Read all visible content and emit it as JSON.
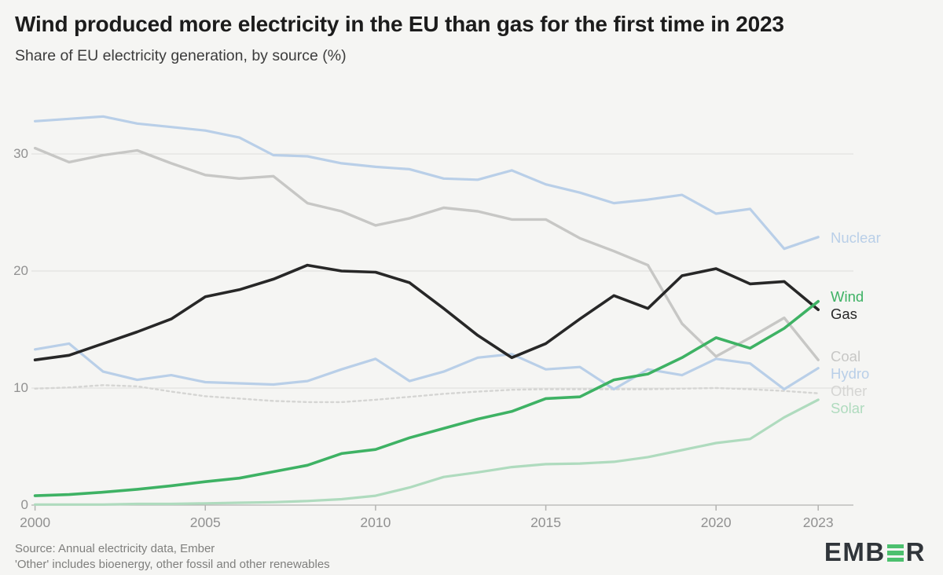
{
  "header": {
    "title": "Wind produced more electricity in the EU than gas for the first time in 2023",
    "subtitle": "Share of EU electricity generation, by source (%)"
  },
  "footer": {
    "source_line1": "Source: Annual electricity data, Ember",
    "source_line2": "'Other' includes bioenergy, other fossil and other renewables",
    "logo_before": "EMB",
    "logo_after": "R",
    "logo_bar_color": "#4cc06e",
    "logo_text_color": "#30353a"
  },
  "colors": {
    "background": "#f5f5f3",
    "gridline": "#dddddb",
    "axis": "#b3b3b1",
    "tick_label": "#919191"
  },
  "chart_data": {
    "type": "line",
    "title": "Wind produced more electricity in the EU than gas for the first time in 2023",
    "subtitle_as_ylabel": "Share of EU electricity generation, by source (%)",
    "xlabel": "",
    "ylabel": "%",
    "grid": "horizontal",
    "legend_position": "right-of-lines",
    "x": [
      2000,
      2001,
      2002,
      2003,
      2004,
      2005,
      2006,
      2007,
      2008,
      2009,
      2010,
      2011,
      2012,
      2013,
      2014,
      2015,
      2016,
      2017,
      2018,
      2019,
      2020,
      2021,
      2022,
      2023
    ],
    "xticks": [
      2000,
      2005,
      2010,
      2015,
      2020,
      2023
    ],
    "yticks": [
      0,
      10,
      20,
      30
    ],
    "ylim": [
      0,
      35
    ],
    "series": [
      {
        "id": "other",
        "label": "Other",
        "color": "#d5d5d3",
        "dashed": true,
        "values": [
          9.95,
          10.05,
          10.25,
          10.15,
          9.7,
          9.3,
          9.1,
          8.9,
          8.8,
          8.8,
          9.0,
          9.25,
          9.5,
          9.7,
          9.85,
          9.9,
          9.9,
          9.9,
          9.9,
          9.95,
          10.0,
          9.9,
          9.75,
          9.55
        ]
      },
      {
        "id": "solar",
        "label": "Solar",
        "color": "#afdbbe",
        "dashed": false,
        "values": [
          0.05,
          0.05,
          0.05,
          0.1,
          0.1,
          0.15,
          0.2,
          0.25,
          0.35,
          0.5,
          0.8,
          1.5,
          2.4,
          2.8,
          3.25,
          3.5,
          3.55,
          3.7,
          4.1,
          4.7,
          5.3,
          5.65,
          7.5,
          9.0
        ]
      },
      {
        "id": "hydro",
        "label": "Hydro",
        "color": "#b9cfe8",
        "dashed": false,
        "values": [
          13.3,
          13.8,
          11.4,
          10.7,
          11.1,
          10.5,
          10.4,
          10.3,
          10.6,
          11.6,
          12.5,
          10.6,
          11.4,
          12.6,
          12.9,
          11.6,
          11.8,
          9.9,
          11.6,
          11.1,
          12.5,
          12.1,
          9.9,
          11.7
        ]
      },
      {
        "id": "nuclear",
        "label": "Nuclear",
        "color": "#b9cfe8",
        "dashed": false,
        "values": [
          32.8,
          33.0,
          33.2,
          32.6,
          32.3,
          32.0,
          31.4,
          29.9,
          29.8,
          29.2,
          28.9,
          28.7,
          27.9,
          27.8,
          28.6,
          27.4,
          26.7,
          25.8,
          26.1,
          26.5,
          24.9,
          25.3,
          21.9,
          22.9
        ]
      },
      {
        "id": "coal",
        "label": "Coal",
        "color": "#c7c7c5",
        "dashed": false,
        "values": [
          30.5,
          29.3,
          29.9,
          30.3,
          29.2,
          28.2,
          27.9,
          28.1,
          25.8,
          25.1,
          23.9,
          24.5,
          25.4,
          25.1,
          24.4,
          24.4,
          22.8,
          21.7,
          20.5,
          15.5,
          12.7,
          14.3,
          16.0,
          12.4
        ]
      },
      {
        "id": "gas",
        "label": "Gas",
        "color": "#272727",
        "dashed": false,
        "values": [
          12.4,
          12.8,
          13.8,
          14.8,
          15.9,
          17.8,
          18.4,
          19.3,
          20.5,
          20.0,
          19.9,
          19.0,
          16.8,
          14.5,
          12.6,
          13.8,
          15.9,
          17.9,
          16.8,
          19.6,
          20.2,
          18.9,
          19.1,
          16.7
        ]
      },
      {
        "id": "wind",
        "label": "Wind",
        "color": "#3eb264",
        "dashed": false,
        "values": [
          0.8,
          0.9,
          1.1,
          1.35,
          1.65,
          2.0,
          2.3,
          2.85,
          3.4,
          4.4,
          4.75,
          5.75,
          6.55,
          7.35,
          8.0,
          9.1,
          9.25,
          10.7,
          11.2,
          12.6,
          14.3,
          13.4,
          15.1,
          17.4
        ]
      }
    ]
  }
}
